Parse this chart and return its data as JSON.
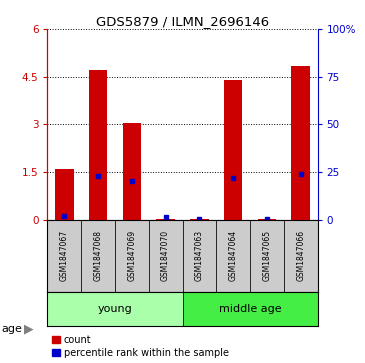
{
  "title": "GDS5879 / ILMN_2696146",
  "samples": [
    "GSM1847067",
    "GSM1847068",
    "GSM1847069",
    "GSM1847070",
    "GSM1847063",
    "GSM1847064",
    "GSM1847065",
    "GSM1847066"
  ],
  "red_values": [
    1.6,
    4.7,
    3.05,
    0.02,
    0.01,
    4.4,
    0.01,
    4.85
  ],
  "blue_values": [
    0.1,
    1.38,
    1.2,
    0.08,
    0.01,
    1.32,
    0.005,
    1.44
  ],
  "groups": [
    {
      "label": "young",
      "start": 0,
      "end": 4,
      "color": "#aaffaa"
    },
    {
      "label": "middle age",
      "start": 4,
      "end": 8,
      "color": "#44ee44"
    }
  ],
  "age_label": "age",
  "ylim_left": [
    0,
    6
  ],
  "ylim_right": [
    0,
    100
  ],
  "yticks_left": [
    0,
    1.5,
    3,
    4.5,
    6
  ],
  "yticks_right": [
    0,
    25,
    50,
    75,
    100
  ],
  "ytick_labels_left": [
    "0",
    "1.5",
    "3",
    "4.5",
    "6"
  ],
  "ytick_labels_right": [
    "0",
    "25",
    "50",
    "75",
    "100%"
  ],
  "bar_color": "#cc0000",
  "dot_color": "#0000cc",
  "bar_width": 0.55,
  "bg_color": "#ffffff",
  "sample_box_color": "#cccccc",
  "legend_count_label": "count",
  "legend_percentile_label": "percentile rank within the sample"
}
